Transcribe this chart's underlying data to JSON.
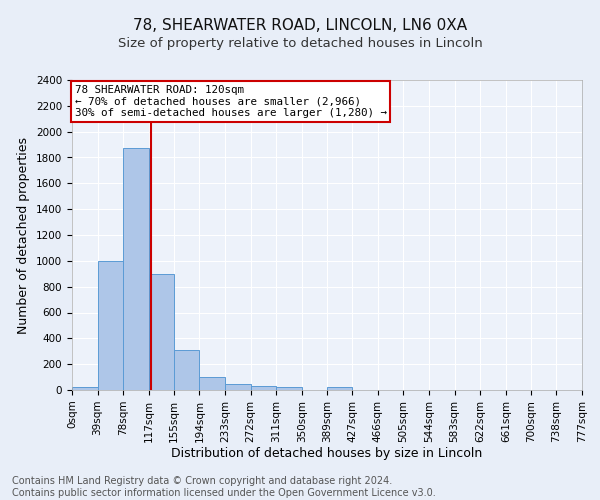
{
  "title1": "78, SHEARWATER ROAD, LINCOLN, LN6 0XA",
  "title2": "Size of property relative to detached houses in Lincoln",
  "xlabel": "Distribution of detached houses by size in Lincoln",
  "ylabel": "Number of detached properties",
  "footer_line1": "Contains HM Land Registry data © Crown copyright and database right 2024.",
  "footer_line2": "Contains public sector information licensed under the Open Government Licence v3.0.",
  "annotation_line1": "78 SHEARWATER ROAD: 120sqm",
  "annotation_line2": "← 70% of detached houses are smaller (2,966)",
  "annotation_line3": "30% of semi-detached houses are larger (1,280) →",
  "bin_edges": [
    0,
    39,
    78,
    117,
    155,
    194,
    233,
    272,
    311,
    350,
    389,
    427,
    466,
    505,
    544,
    583,
    622,
    661,
    700,
    738,
    777
  ],
  "bar_heights": [
    20,
    1000,
    1870,
    900,
    310,
    100,
    45,
    30,
    25,
    0,
    20,
    0,
    0,
    0,
    0,
    0,
    0,
    0,
    0,
    0
  ],
  "bar_color": "#aec6e8",
  "bar_edge_color": "#5b9bd5",
  "vline_x": 120,
  "vline_color": "#cc0000",
  "ylim": [
    0,
    2400
  ],
  "yticks": [
    0,
    200,
    400,
    600,
    800,
    1000,
    1200,
    1400,
    1600,
    1800,
    2000,
    2200,
    2400
  ],
  "tick_labels": [
    "0sqm",
    "39sqm",
    "78sqm",
    "117sqm",
    "155sqm",
    "194sqm",
    "233sqm",
    "272sqm",
    "311sqm",
    "350sqm",
    "389sqm",
    "427sqm",
    "466sqm",
    "505sqm",
    "544sqm",
    "583sqm",
    "622sqm",
    "661sqm",
    "700sqm",
    "738sqm",
    "777sqm"
  ],
  "bg_color": "#e8eef8",
  "plot_bg_color": "#edf2fa",
  "grid_color": "#ffffff",
  "annotation_box_color": "#ffffff",
  "annotation_box_edge": "#cc0000",
  "title1_fontsize": 11,
  "title2_fontsize": 9.5,
  "axis_label_fontsize": 9,
  "tick_fontsize": 7.5,
  "annotation_fontsize": 7.8,
  "footer_fontsize": 7
}
